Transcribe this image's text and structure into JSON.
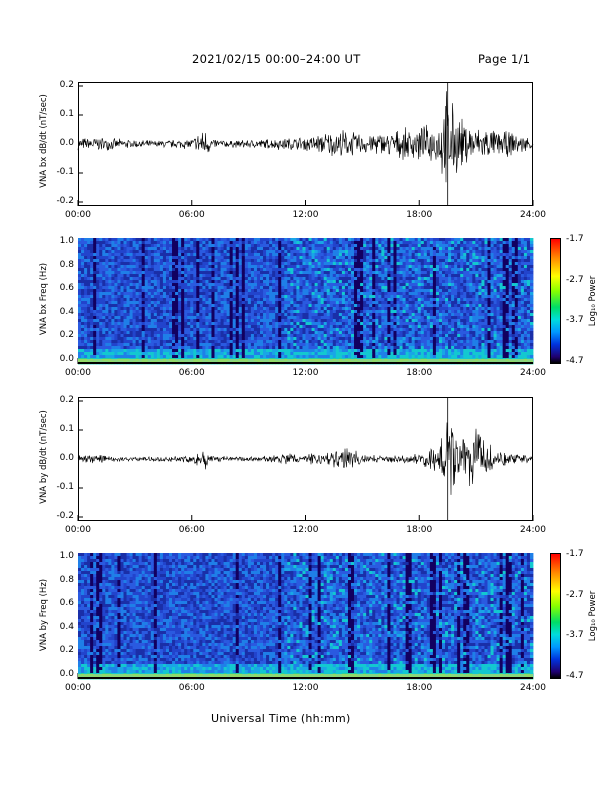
{
  "header": {
    "title": "2021/02/15  00:00–24:00 UT",
    "page": "Page 1/1"
  },
  "x_axis": {
    "label": "Universal Time (hh:mm)",
    "ticks": [
      "00:00",
      "06:00",
      "12:00",
      "18:00",
      "24:00"
    ]
  },
  "colors": {
    "trace": "#000000",
    "spec_bg": "#1f35b8"
  },
  "chart_data": [
    {
      "type": "line",
      "ylabel": "VNA bx dB/dt (nT/sec)",
      "ylim": [
        -0.2,
        0.2
      ],
      "yticks": [
        "0.2",
        "0.1",
        "0.0",
        "-0.1",
        "-0.2"
      ],
      "x_hours": [
        0,
        1,
        2,
        3,
        4,
        5,
        6,
        6.7,
        7,
        8,
        9,
        10,
        11,
        12,
        13,
        14,
        15,
        16,
        17,
        18,
        19,
        19.5,
        20,
        21,
        22,
        23,
        24
      ],
      "envelope": [
        0.02,
        0.025,
        0.018,
        0.015,
        0.012,
        0.015,
        0.018,
        0.06,
        0.02,
        0.012,
        0.015,
        0.018,
        0.022,
        0.025,
        0.04,
        0.05,
        0.035,
        0.04,
        0.05,
        0.06,
        0.07,
        0.2,
        0.1,
        0.06,
        0.05,
        0.04,
        0.02
      ]
    },
    {
      "type": "heatmap",
      "ylabel": "VNA bx Freq (Hz)",
      "ylim": [
        0.0,
        1.0
      ],
      "yticks": [
        "1.0",
        "0.8",
        "0.6",
        "0.4",
        "0.2",
        "0.0"
      ],
      "colorbar": {
        "label": "Log₁₀ Power",
        "ticks": [
          "-1.7",
          "-2.7",
          "-3.7",
          "-4.7"
        ]
      }
    },
    {
      "type": "line",
      "ylabel": "VNA by dB/dt (nT/sec)",
      "ylim": [
        -0.2,
        0.2
      ],
      "yticks": [
        "0.2",
        "0.1",
        "0.0",
        "-0.1",
        "-0.2"
      ],
      "x_hours": [
        0,
        1,
        2,
        3,
        4,
        5,
        6,
        6.7,
        7,
        8,
        9,
        10,
        11,
        12,
        13,
        14,
        15,
        16,
        17,
        18,
        19,
        19.5,
        20,
        21,
        22,
        23,
        24
      ],
      "envelope": [
        0.012,
        0.015,
        0.01,
        0.008,
        0.008,
        0.01,
        0.012,
        0.04,
        0.012,
        0.008,
        0.008,
        0.012,
        0.02,
        0.018,
        0.02,
        0.05,
        0.015,
        0.012,
        0.012,
        0.02,
        0.05,
        0.2,
        0.07,
        0.1,
        0.03,
        0.02,
        0.015
      ]
    },
    {
      "type": "heatmap",
      "ylabel": "VNA by Freq (Hz)",
      "ylim": [
        0.0,
        1.0
      ],
      "yticks": [
        "1.0",
        "0.8",
        "0.6",
        "0.4",
        "0.2",
        "0.0"
      ],
      "colorbar": {
        "label": "Log₁₀ Power",
        "ticks": [
          "-1.7",
          "-2.7",
          "-3.7",
          "-4.7"
        ]
      }
    }
  ]
}
